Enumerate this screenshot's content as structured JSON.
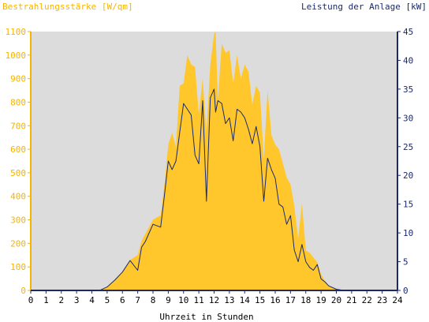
{
  "chart_data": {
    "type": "area",
    "ylabel_left": "Bestrahlungsstärke [W/qm]",
    "ylabel_right": "Leistung der Anlage [kW]",
    "xlabel": "Uhrzeit in Stunden",
    "xlim": [
      0,
      24
    ],
    "ylim_left": [
      0,
      1100
    ],
    "ylim_right": [
      0,
      45
    ],
    "x_ticks": [
      "0",
      "1",
      "2",
      "3",
      "4",
      "5",
      "6",
      "7",
      "8",
      "9",
      "10",
      "11",
      "12",
      "13",
      "14",
      "15",
      "16",
      "17",
      "18",
      "19",
      "20",
      "21",
      "22",
      "23",
      "24"
    ],
    "y_left_ticks": [
      "0",
      "100",
      "200",
      "300",
      "400",
      "500",
      "600",
      "700",
      "800",
      "900",
      "1000",
      "1100"
    ],
    "y_right_ticks": [
      "0",
      "5",
      "10",
      "15",
      "20",
      "25",
      "30",
      "35",
      "40",
      "45"
    ],
    "grid": false,
    "series": [
      {
        "name": "Bestrahlungsstärke [W/qm]",
        "axis": "left",
        "style": "filled area",
        "color": "#ffc72c",
        "x": [
          0,
          4.5,
          5,
          5.5,
          6,
          6.5,
          7,
          7.25,
          7.5,
          8,
          8.5,
          8.75,
          9,
          9.25,
          9.5,
          9.75,
          10,
          10.25,
          10.5,
          10.75,
          11,
          11.25,
          11.5,
          11.75,
          12,
          12.1,
          12.25,
          12.5,
          12.75,
          13,
          13.25,
          13.5,
          13.75,
          14,
          14.25,
          14.5,
          14.75,
          15,
          15.25,
          15.5,
          15.75,
          16,
          16.25,
          16.5,
          16.75,
          17,
          17.25,
          17.5,
          17.75,
          18,
          18.25,
          18.5,
          18.75,
          19,
          19.25,
          19.5,
          20,
          20.5,
          24
        ],
        "values": [
          0,
          0,
          15,
          45,
          80,
          130,
          150,
          210,
          240,
          300,
          320,
          450,
          620,
          670,
          610,
          870,
          880,
          1000,
          960,
          950,
          750,
          900,
          670,
          960,
          1090,
          1100,
          810,
          1050,
          1010,
          1020,
          880,
          1000,
          900,
          960,
          930,
          790,
          870,
          840,
          560,
          850,
          660,
          620,
          600,
          540,
          480,
          450,
          360,
          220,
          370,
          170,
          160,
          140,
          120,
          70,
          40,
          20,
          5,
          0,
          0
        ]
      },
      {
        "name": "Leistung der Anlage [kW]",
        "axis": "right",
        "style": "line",
        "color": "#1a2a6c",
        "x": [
          0,
          4.5,
          5,
          5.5,
          6,
          6.5,
          7,
          7.25,
          7.5,
          8,
          8.5,
          8.75,
          9,
          9.25,
          9.5,
          9.75,
          10,
          10.25,
          10.5,
          10.75,
          11,
          11.25,
          11.5,
          11.75,
          12,
          12.1,
          12.25,
          12.5,
          12.75,
          13,
          13.25,
          13.5,
          13.75,
          14,
          14.25,
          14.5,
          14.75,
          15,
          15.25,
          15.5,
          15.75,
          16,
          16.25,
          16.5,
          16.75,
          17,
          17.25,
          17.5,
          17.75,
          18,
          18.25,
          18.5,
          18.75,
          19,
          19.25,
          19.5,
          20,
          20.5,
          24
        ],
        "values": [
          0,
          0,
          0.6,
          1.8,
          3.2,
          5.2,
          3.5,
          7.5,
          8.5,
          11.5,
          11.0,
          16.5,
          22.5,
          21.0,
          22.5,
          27.5,
          32.5,
          31.5,
          30.5,
          23.5,
          22.0,
          33.0,
          15.5,
          33.5,
          35.0,
          31.0,
          33.0,
          32.5,
          29.0,
          30.0,
          26.0,
          31.5,
          31.0,
          30.0,
          28.0,
          25.5,
          28.5,
          25.0,
          15.5,
          23.0,
          21.0,
          19.5,
          15.0,
          14.5,
          11.5,
          13.0,
          7.0,
          5.0,
          8.0,
          5.0,
          4.0,
          3.5,
          4.5,
          2.0,
          1.5,
          0.8,
          0.2,
          0,
          0
        ]
      }
    ]
  },
  "colors": {
    "plot_background": "#dcdcdc",
    "irradiance_fill": "#ffc72c",
    "power_line": "#1a2a6c",
    "left_axis": "#f5b400",
    "right_axis": "#1a2a6c"
  }
}
